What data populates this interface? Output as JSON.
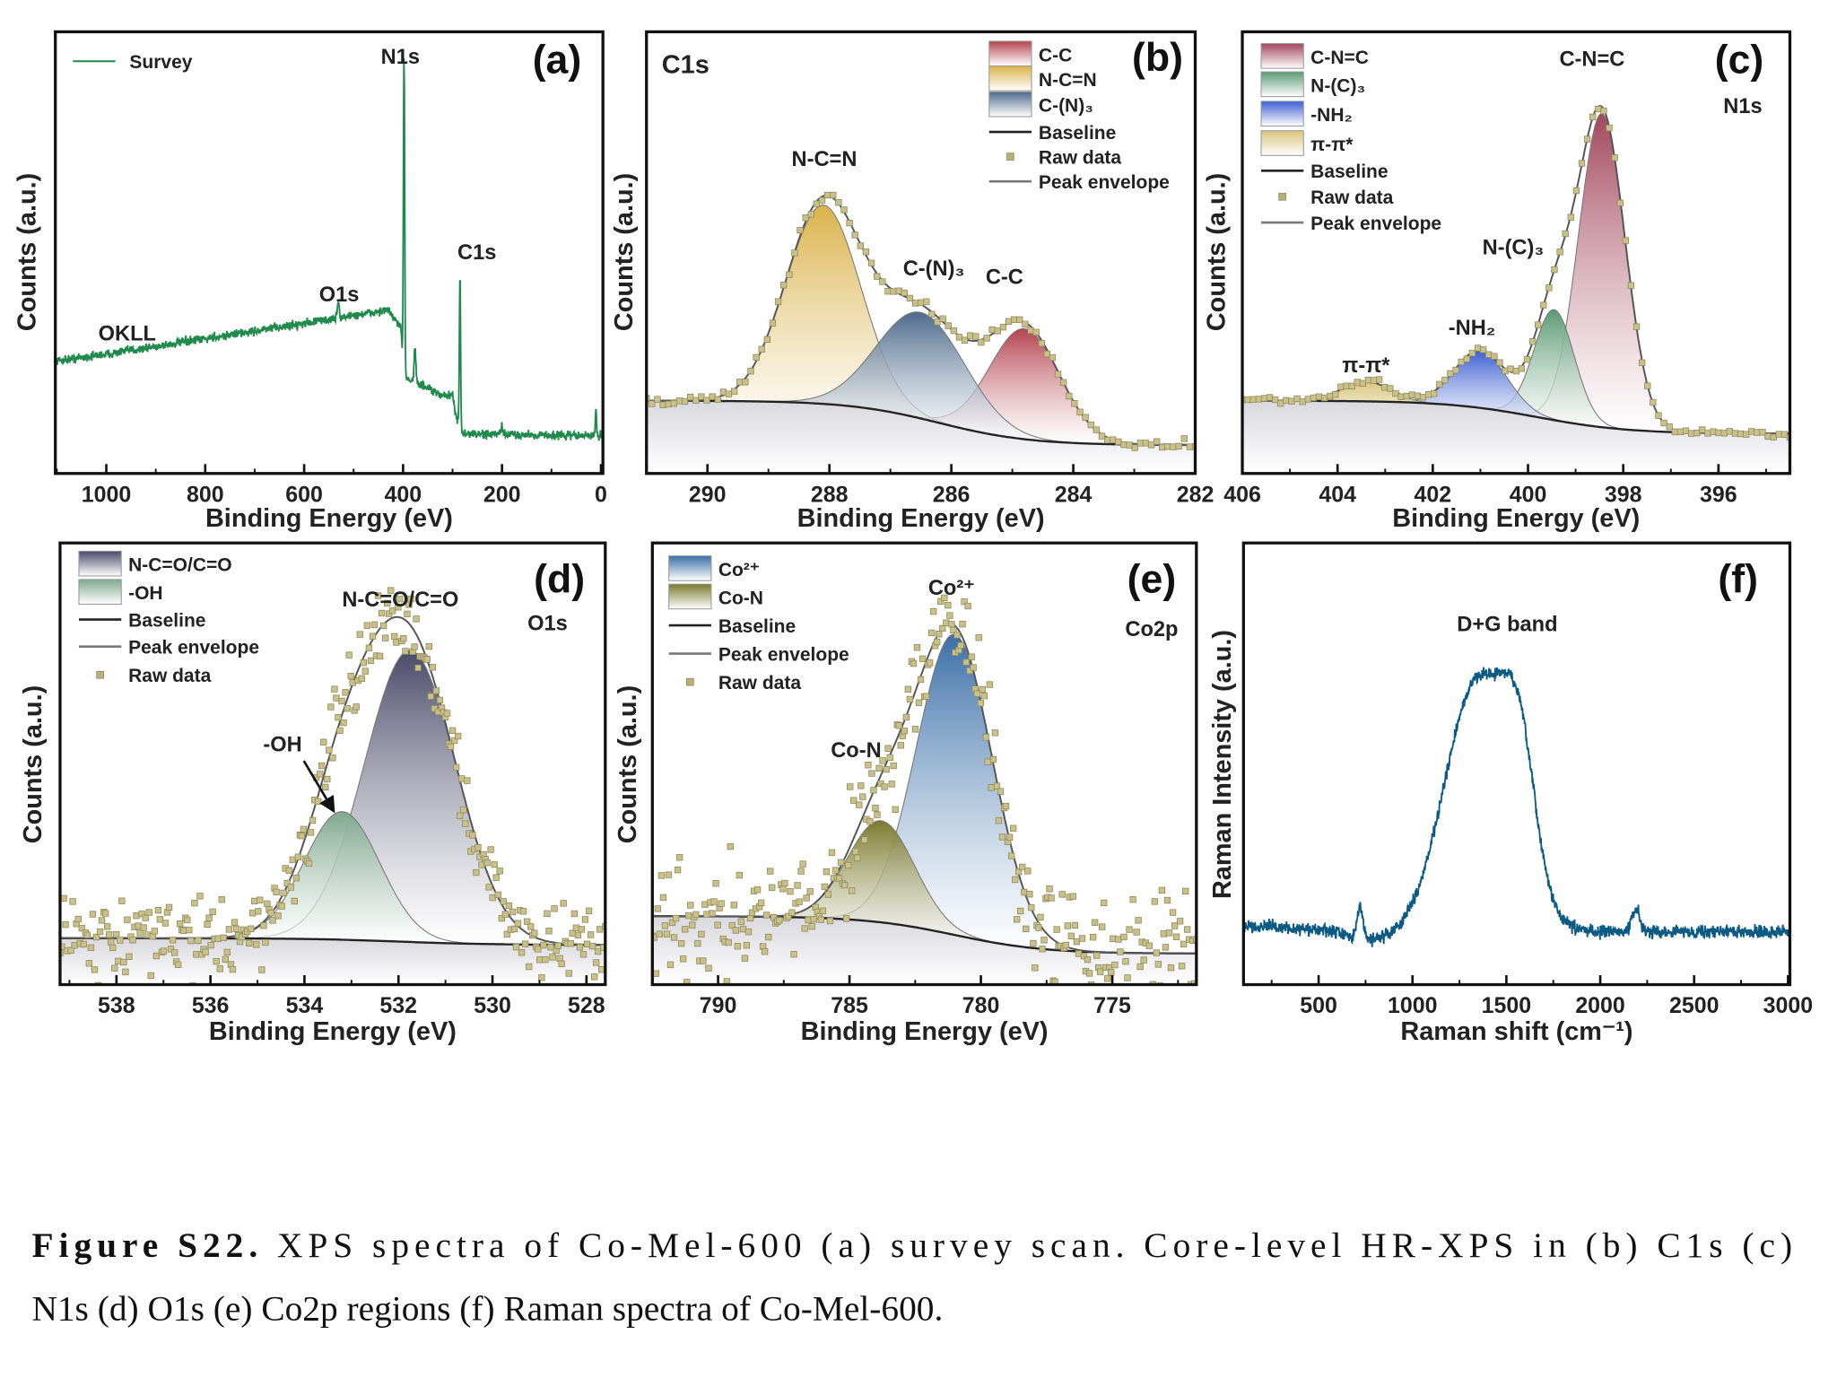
{
  "caption": {
    "label": "Figure S22.",
    "line1": " XPS spectra of Co-Mel-600 (a) survey scan. Core-level HR-XPS in (b) C1s (c)",
    "line2": "N1s (d) O1s (e) Co2p regions (f) Raman spectra of Co-Mel-600."
  },
  "chart_data": [
    {
      "panel_label": "(a)",
      "type": "line",
      "sublabel": "",
      "xlabel": "Binding Energy (eV)",
      "ylabel": "Counts (a.u.)",
      "xlim": [
        1103,
        -4
      ],
      "ylim": [
        0,
        1
      ],
      "x_ticks": [
        1000,
        800,
        600,
        400,
        200,
        0
      ],
      "minor_step": 100,
      "series": [
        {
          "name": "Survey",
          "color": "#1f8a4c",
          "background": [
            [
              1103,
              0.255
            ],
            [
              1000,
              0.27
            ],
            [
              430,
              0.37
            ],
            [
              405,
              0.33
            ],
            [
              398,
              0.22
            ],
            [
              330,
              0.18
            ],
            [
              300,
              0.175
            ],
            [
              292,
              0.13
            ],
            [
              283,
              0.09
            ],
            [
              -4,
              0.085
            ]
          ],
          "peaks": [
            {
              "center": 398,
              "height": 0.72,
              "fwhm": 3
            },
            {
              "center": 285,
              "height": 0.35,
              "fwhm": 3
            },
            {
              "center": 531,
              "height": 0.04,
              "fwhm": 4
            },
            {
              "center": 376,
              "height": 0.08,
              "fwhm": 4
            },
            {
              "center": 200,
              "height": 0.02,
              "fwhm": 3
            },
            {
              "center": 10,
              "height": 0.06,
              "fwhm": 3
            }
          ]
        }
      ],
      "legend": [
        {
          "kind": "line",
          "label": "Survey",
          "color": "#1f8a4c"
        }
      ],
      "annotations": [
        "N1s",
        "C1s",
        "O1s",
        "OKLL"
      ]
    },
    {
      "panel_label": "(b)",
      "type": "line",
      "sublabel": "C1s",
      "xlabel": "Binding Energy (eV)",
      "ylabel": "Counts (a.u.)",
      "xlim": [
        291,
        282
      ],
      "ylim": [
        0,
        1
      ],
      "x_ticks": [
        290,
        288,
        286,
        284,
        282
      ],
      "minor_step": 1,
      "baseline": {
        "high_be_level": 0.165,
        "low_be_level": 0.064,
        "step_center": 286.2
      },
      "components": [
        {
          "name": "C-C",
          "center": 284.8,
          "fwhm": 1.35,
          "height": 0.25,
          "color": "#b5434e"
        },
        {
          "name": "N-C=N",
          "center": 288.1,
          "fwhm": 1.45,
          "height": 0.45,
          "color": "#d9b24a"
        },
        {
          "name": "C-(N)₃",
          "center": 286.5,
          "fwhm": 1.7,
          "height": 0.24,
          "color": "#4d6a8c"
        }
      ],
      "legend": [
        {
          "kind": "swatch",
          "label": "C-C",
          "color": "#b5434e"
        },
        {
          "kind": "swatch",
          "label": "N-C=N",
          "color": "#d9b24a"
        },
        {
          "kind": "swatch",
          "label": "C-(N)₃",
          "color": "#4d6a8c"
        },
        {
          "kind": "line",
          "label": "Baseline",
          "color": "#222222"
        },
        {
          "kind": "marker",
          "label": "Raw data",
          "color": "#b8b07a"
        },
        {
          "kind": "line",
          "label": "Peak envelope",
          "color": "#777777"
        }
      ],
      "annotations": [
        "N-C=N",
        "C-(N)₃",
        "C-C"
      ]
    },
    {
      "panel_label": "(c)",
      "type": "line",
      "sublabel": "N1s",
      "xlabel": "Binding Energy (eV)",
      "ylabel": "Counts (a.u.)",
      "xlim": [
        406,
        394.5
      ],
      "ylim": [
        0,
        1
      ],
      "x_ticks": [
        406,
        404,
        402,
        400,
        398,
        396
      ],
      "minor_step": 1,
      "baseline": {
        "high_be_level": 0.165,
        "low_be_level": 0.09,
        "step_center": 399.8
      },
      "components": [
        {
          "name": "C-N=C",
          "center": 398.45,
          "fwhm": 1.15,
          "height": 0.71,
          "color": "#a3475e"
        },
        {
          "name": "N-(C)₃",
          "center": 399.45,
          "fwhm": 1.0,
          "height": 0.25,
          "color": "#5b9a74"
        },
        {
          "name": "-NH₂",
          "center": 401.0,
          "fwhm": 1.3,
          "height": 0.13,
          "color": "#3c5fd1"
        },
        {
          "name": "π-π*",
          "center": 403.4,
          "fwhm": 1.2,
          "height": 0.045,
          "color": "#d8c47a"
        }
      ],
      "legend": [
        {
          "kind": "swatch",
          "label": "C-N=C",
          "color": "#a3475e"
        },
        {
          "kind": "swatch",
          "label": "N-(C)₃",
          "color": "#5b9a74"
        },
        {
          "kind": "swatch",
          "label": "-NH₂",
          "color": "#3c5fd1"
        },
        {
          "kind": "swatch",
          "label": "π-π*",
          "color": "#d8c47a"
        },
        {
          "kind": "line",
          "label": "Baseline",
          "color": "#222222"
        },
        {
          "kind": "marker",
          "label": "Raw data",
          "color": "#b8b07a"
        },
        {
          "kind": "line",
          "label": "Peak envelope",
          "color": "#777777"
        }
      ],
      "annotations": [
        "C-N=C",
        "N-(C)₃",
        "-NH₂",
        "π-π*"
      ]
    },
    {
      "panel_label": "(d)",
      "type": "line",
      "sublabel": "O1s",
      "xlabel": "Binding Energy (eV)",
      "ylabel": "Counts (a.u.)",
      "xlim": [
        539.2,
        527.6
      ],
      "ylim": [
        0,
        1
      ],
      "x_ticks": [
        538,
        536,
        534,
        532,
        530,
        528
      ],
      "minor_step": 1,
      "baseline": {
        "high_be_level": 0.105,
        "low_be_level": 0.09,
        "step_center": 532
      },
      "components": [
        {
          "name": "N-C=O/C=O",
          "center": 531.75,
          "fwhm": 2.3,
          "height": 0.66,
          "color": "#4a4a6a"
        },
        {
          "name": "-OH",
          "center": 533.2,
          "fwhm": 1.9,
          "height": 0.29,
          "color": "#7fa88f"
        }
      ],
      "legend": [
        {
          "kind": "swatch",
          "label": "N-C=O/C=O",
          "color": "#4a4a6a"
        },
        {
          "kind": "swatch",
          "label": "-OH",
          "color": "#7fa88f"
        },
        {
          "kind": "line",
          "label": "Baseline",
          "color": "#222222"
        },
        {
          "kind": "line",
          "label": "Peak envelope",
          "color": "#777777"
        },
        {
          "kind": "marker",
          "label": "Raw data",
          "color": "#b8b07a"
        }
      ],
      "annotations": [
        "N-C=O/C=O",
        "-OH"
      ]
    },
    {
      "panel_label": "(e)",
      "type": "line",
      "sublabel": "Co2p",
      "xlabel": "Binding Energy (eV)",
      "ylabel": "Counts (a.u.)",
      "xlim": [
        792.5,
        771.8
      ],
      "ylim": [
        0,
        1
      ],
      "x_ticks": [
        790,
        785,
        780,
        775
      ],
      "minor_step": 2.5,
      "baseline": {
        "high_be_level": 0.155,
        "low_be_level": 0.07,
        "step_center": 781
      },
      "components": [
        {
          "name": "Co²⁺",
          "center": 781.0,
          "fwhm": 3.4,
          "height": 0.68,
          "color": "#3a6fa8"
        },
        {
          "name": "Co-N",
          "center": 783.8,
          "fwhm": 3.0,
          "height": 0.23,
          "color": "#7b7a2e"
        }
      ],
      "legend": [
        {
          "kind": "swatch",
          "label": "Co²⁺",
          "color": "#3a6fa8"
        },
        {
          "kind": "swatch",
          "label": "Co-N",
          "color": "#7b7a2e"
        },
        {
          "kind": "line",
          "label": "Baseline",
          "color": "#222222"
        },
        {
          "kind": "line",
          "label": "Peak envelope",
          "color": "#777777"
        },
        {
          "kind": "marker",
          "label": "Raw data",
          "color": "#b8b07a"
        }
      ],
      "annotations": [
        "Co²⁺",
        "Co-N"
      ]
    },
    {
      "panel_label": "(f)",
      "type": "line",
      "sublabel": "",
      "xlabel": "Raman shift (cm⁻¹)",
      "ylabel": "Raman Intensity (a.u.)",
      "xlim": [
        100,
        3010
      ],
      "ylim": [
        0,
        1
      ],
      "x_ticks": [
        500,
        1000,
        1500,
        2000,
        2500,
        3000
      ],
      "minor_step": 250,
      "series": [
        {
          "name": "",
          "color": "#0b5a84",
          "background": [
            [
              100,
              0.135
            ],
            [
              600,
              0.12
            ],
            [
              700,
              0.1
            ],
            [
              900,
              0.1
            ],
            [
              1800,
              0.12
            ],
            [
              3010,
              0.12
            ]
          ],
          "peaks": [
            {
              "center": 1350,
              "height": 0.58,
              "fwhm": 420
            },
            {
              "center": 1570,
              "height": 0.26,
              "fwhm": 200
            },
            {
              "center": 720,
              "height": 0.07,
              "fwhm": 40
            },
            {
              "center": 2190,
              "height": 0.05,
              "fwhm": 50
            }
          ]
        }
      ],
      "legend": [],
      "annotations": [
        "D+G band"
      ]
    }
  ]
}
